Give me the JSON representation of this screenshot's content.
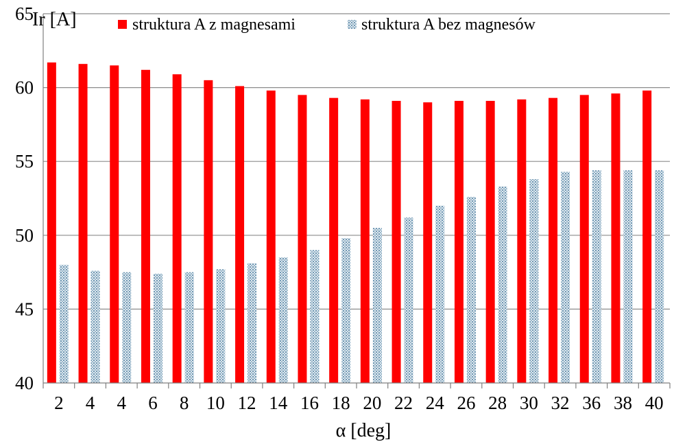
{
  "chart_data": {
    "type": "bar",
    "title": "",
    "xlabel": "α [deg]",
    "ylabel": "Ir [A]",
    "ylim": [
      40,
      65
    ],
    "yticks": [
      40,
      45,
      50,
      55,
      60,
      65
    ],
    "grid": true,
    "legend_position": "top",
    "categories": [
      "2",
      "4",
      "4",
      "6",
      "8",
      "10",
      "12",
      "14",
      "16",
      "18",
      "20",
      "22",
      "24",
      "26",
      "28",
      "30",
      "32",
      "36",
      "38",
      "40"
    ],
    "series": [
      {
        "name": "struktura A z magnesami",
        "color": "#ff0000",
        "pattern": "solid",
        "values": [
          61.7,
          61.6,
          61.5,
          61.2,
          60.9,
          60.5,
          60.1,
          59.8,
          59.5,
          59.3,
          59.2,
          59.1,
          59.0,
          59.1,
          59.1,
          59.2,
          59.3,
          59.5,
          59.6,
          59.8
        ]
      },
      {
        "name": "struktura A bez magnesów",
        "color": "#8fb2c8",
        "pattern": "dotted",
        "values": [
          48.0,
          47.6,
          47.5,
          47.4,
          47.5,
          47.7,
          48.1,
          48.5,
          49.0,
          49.8,
          50.5,
          51.2,
          52.0,
          52.6,
          53.3,
          53.8,
          54.3,
          54.4,
          54.4,
          54.4
        ]
      }
    ]
  }
}
